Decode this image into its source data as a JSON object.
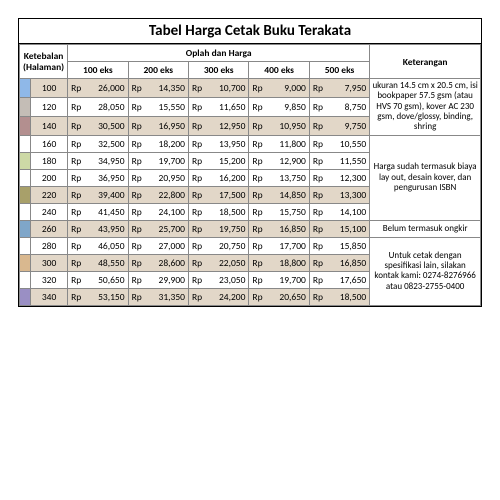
{
  "title": "Tabel Harga Cetak Buku Terakata",
  "headers": {
    "ketebalan": "Ketebalan (Halaman)",
    "oplah": "Oplah dan Harga",
    "keterangan": "Keterangan",
    "eks": [
      "100 eks",
      "200 eks",
      "300 eks",
      "400 eks",
      "500 eks"
    ]
  },
  "currency_prefix": "Rp",
  "swatch_colors": [
    "#8fb8e8",
    "#c4bdb6",
    "#b38f8f",
    null,
    "#cdd9a6",
    null,
    "#a8a06a",
    null,
    "#7fa6c9",
    null,
    "#d9b88f",
    null,
    "#9a8fc4"
  ],
  "highlight_bg": "#e2d7c8",
  "cell_bg": "#ffffff",
  "border_color": "#7a6a4a",
  "rows": [
    {
      "pages": 100,
      "prices": [
        "26,000",
        "14,350",
        "10,700",
        "9,000",
        "7,950"
      ],
      "hl": true
    },
    {
      "pages": 120,
      "prices": [
        "28,050",
        "15,550",
        "11,650",
        "9,850",
        "8,750"
      ],
      "hl": false
    },
    {
      "pages": 140,
      "prices": [
        "30,500",
        "16,950",
        "12,950",
        "10,950",
        "9,750"
      ],
      "hl": true
    },
    {
      "pages": 160,
      "prices": [
        "32,500",
        "18,200",
        "13,950",
        "11,800",
        "10,550"
      ],
      "hl": false
    },
    {
      "pages": 180,
      "prices": [
        "34,950",
        "19,700",
        "15,200",
        "12,900",
        "11,550"
      ],
      "hl": false
    },
    {
      "pages": 200,
      "prices": [
        "36,950",
        "20,950",
        "16,200",
        "13,750",
        "12,300"
      ],
      "hl": false
    },
    {
      "pages": 220,
      "prices": [
        "39,400",
        "22,800",
        "17,500",
        "14,850",
        "13,300"
      ],
      "hl": true
    },
    {
      "pages": 240,
      "prices": [
        "41,450",
        "24,100",
        "18,500",
        "15,750",
        "14,100"
      ],
      "hl": false
    },
    {
      "pages": 260,
      "prices": [
        "43,950",
        "25,700",
        "19,750",
        "16,850",
        "15,100"
      ],
      "hl": true
    },
    {
      "pages": 280,
      "prices": [
        "46,050",
        "27,000",
        "20,750",
        "17,700",
        "15,850"
      ],
      "hl": false
    },
    {
      "pages": 300,
      "prices": [
        "48,550",
        "28,600",
        "22,050",
        "18,800",
        "16,850"
      ],
      "hl": true
    },
    {
      "pages": 320,
      "prices": [
        "50,650",
        "29,900",
        "23,050",
        "19,700",
        "17,650"
      ],
      "hl": false
    },
    {
      "pages": 340,
      "prices": [
        "53,150",
        "31,350",
        "24,200",
        "20,650",
        "18,500"
      ],
      "hl": true
    }
  ],
  "notes": [
    {
      "rowspan": 3,
      "text": "ukuran 14.5 cm x 20.5 cm, isi bookpaper 57.5 gsm (atau HVS 70 gsm), kover AC 230 gsm, dove/glossy, binding, shring"
    },
    {
      "rowspan": 5,
      "text": "Harga sudah termasuk biaya lay out, desain kover, dan pengurusan ISBN"
    },
    {
      "rowspan": 1,
      "text": "Belum termasuk ongkir"
    },
    {
      "rowspan": 4,
      "text": "Untuk cetak dengan spesifikasi lain, silakan kontak kami: 0274-8276966 atau 0823-2755-0400"
    }
  ]
}
